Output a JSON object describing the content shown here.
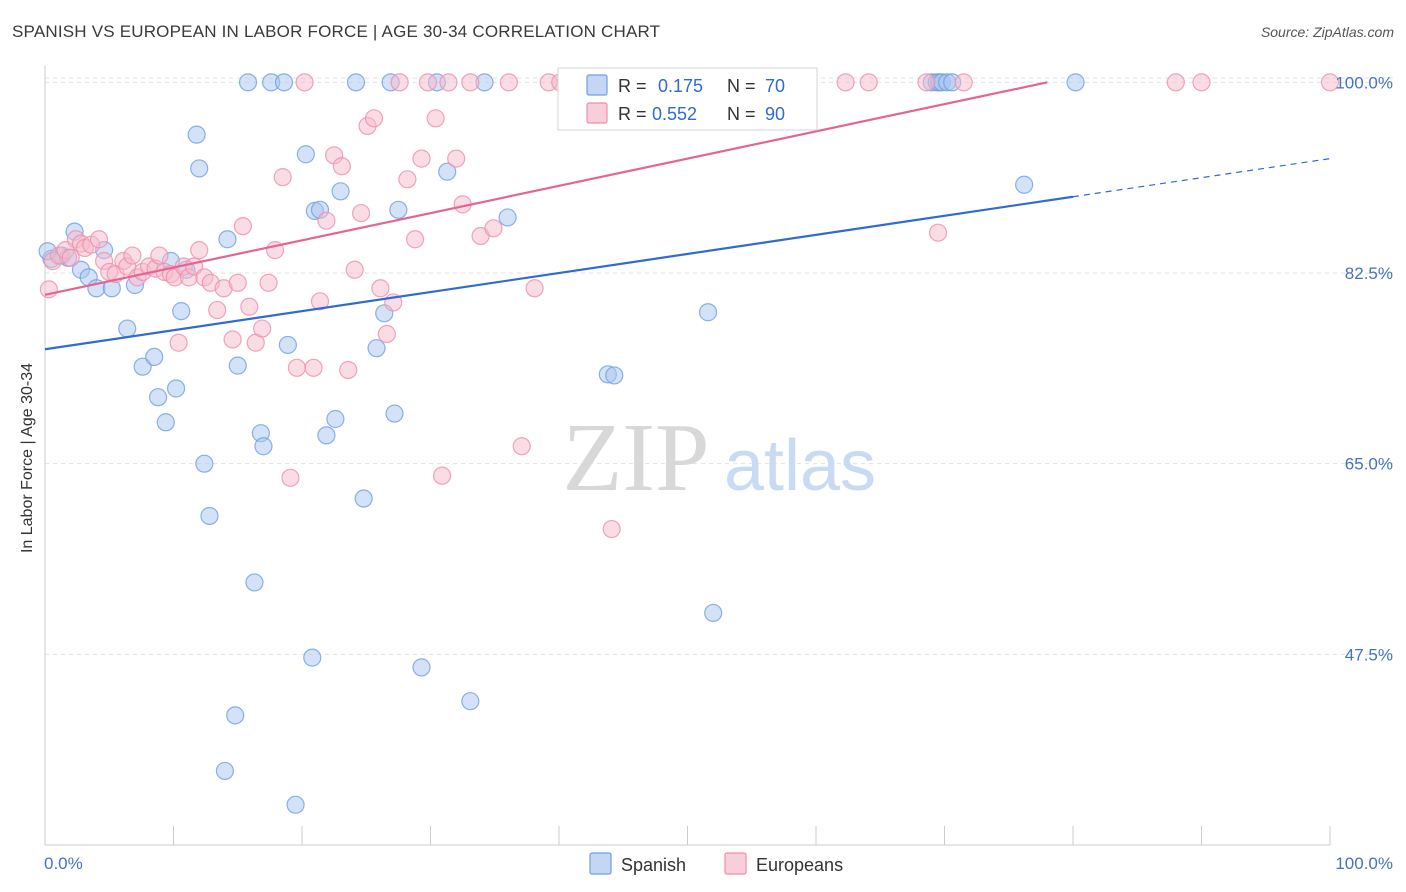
{
  "header": {
    "title": "SPANISH VS EUROPEAN IN LABOR FORCE | AGE 30-34 CORRELATION CHART",
    "source": "Source: ZipAtlas.com"
  },
  "colors": {
    "spanish_fill": "#a9c6f0",
    "spanish_stroke": "#6f9fe0",
    "spanish_line": "#2f6bd0",
    "europeans_fill": "#f6b9cc",
    "europeans_stroke": "#ee8fad",
    "europeans_line": "#e4668f",
    "grid": "#e2e2e2",
    "tick_text": "#4472c4"
  },
  "chart_data": {
    "type": "scatter",
    "title": "SPANISH VS EUROPEAN IN LABOR FORCE | AGE 30-34 CORRELATION CHART",
    "xlabel": "",
    "ylabel": "In Labor Force | Age 30-34",
    "xlim": [
      0,
      100
    ],
    "ylim": [
      30,
      101.5
    ],
    "x_tick_labels": [
      "0.0%",
      "100.0%"
    ],
    "y_ticks": [
      47.5,
      65.0,
      82.5,
      100.0
    ],
    "y_tick_labels": [
      "47.5%",
      "65.0%",
      "82.5%",
      "100.0%"
    ],
    "grid": true,
    "legend_position": "top-center",
    "watermark": {
      "zip": "ZIP",
      "atlas": "atlas"
    },
    "stats": [
      {
        "r_label": "R =",
        "r": "0.175",
        "n_label": "N =",
        "n": "70"
      },
      {
        "r_label": "R =",
        "r": "0.552",
        "n_label": "N =",
        "n": "90"
      }
    ],
    "series": [
      {
        "name": "Spanish",
        "trend": {
          "x": [
            0,
            80
          ],
          "y": [
            75.5,
            89.5
          ],
          "dashed_x": [
            80,
            100
          ],
          "dashed_y": [
            89.5,
            93.0
          ]
        },
        "points": [
          [
            0.5,
            83.8
          ],
          [
            1.3,
            84.1
          ],
          [
            1.8,
            83.9
          ],
          [
            2.3,
            86.3
          ],
          [
            2.8,
            82.8
          ],
          [
            3.4,
            82.1
          ],
          [
            4.0,
            81.1
          ],
          [
            4.6,
            84.6
          ],
          [
            5.2,
            81.1
          ],
          [
            6.4,
            77.4
          ],
          [
            7.0,
            81.4
          ],
          [
            7.6,
            73.9
          ],
          [
            8.5,
            74.8
          ],
          [
            8.8,
            71.1
          ],
          [
            9.4,
            68.8
          ],
          [
            9.8,
            83.6
          ],
          [
            10.2,
            71.9
          ],
          [
            10.6,
            79.0
          ],
          [
            11.0,
            82.8
          ],
          [
            11.8,
            95.2
          ],
          [
            12.0,
            92.1
          ],
          [
            12.4,
            65.0
          ],
          [
            12.8,
            60.2
          ],
          [
            14.0,
            36.8
          ],
          [
            14.2,
            85.6
          ],
          [
            14.8,
            41.9
          ],
          [
            15.0,
            74.0
          ],
          [
            15.8,
            100.0
          ],
          [
            16.3,
            54.1
          ],
          [
            16.8,
            67.8
          ],
          [
            17.0,
            66.6
          ],
          [
            17.6,
            100.0
          ],
          [
            18.6,
            100.0
          ],
          [
            18.9,
            75.9
          ],
          [
            19.5,
            33.7
          ],
          [
            20.3,
            93.4
          ],
          [
            20.8,
            47.2
          ],
          [
            21.0,
            88.2
          ],
          [
            21.4,
            88.3
          ],
          [
            21.9,
            67.6
          ],
          [
            22.6,
            69.1
          ],
          [
            23.0,
            90.0
          ],
          [
            24.2,
            100.0
          ],
          [
            24.8,
            61.8
          ],
          [
            25.8,
            75.6
          ],
          [
            26.4,
            78.8
          ],
          [
            26.9,
            100.0
          ],
          [
            27.2,
            69.6
          ],
          [
            27.5,
            88.3
          ],
          [
            29.3,
            46.3
          ],
          [
            30.5,
            100.0
          ],
          [
            31.3,
            91.8
          ],
          [
            33.1,
            43.2
          ],
          [
            34.2,
            100.0
          ],
          [
            36.0,
            87.6
          ],
          [
            41.7,
            100.0
          ],
          [
            43.6,
            100.0
          ],
          [
            43.8,
            73.2
          ],
          [
            44.3,
            73.1
          ],
          [
            51.6,
            78.9
          ],
          [
            52.0,
            51.3
          ],
          [
            69.0,
            100.0
          ],
          [
            69.4,
            100.0
          ],
          [
            69.6,
            100.0
          ],
          [
            69.8,
            100.0
          ],
          [
            70.2,
            100.0
          ],
          [
            70.6,
            100.0
          ],
          [
            76.2,
            90.6
          ],
          [
            80.2,
            100.0
          ],
          [
            0.2,
            84.5
          ]
        ]
      },
      {
        "name": "Europeans",
        "trend": {
          "x": [
            0,
            78
          ],
          "y": [
            80.5,
            100.0
          ]
        },
        "points": [
          [
            0.3,
            81.0
          ],
          [
            0.6,
            83.6
          ],
          [
            1.1,
            84.1
          ],
          [
            1.6,
            84.6
          ],
          [
            2.0,
            83.9
          ],
          [
            2.4,
            85.6
          ],
          [
            2.8,
            85.2
          ],
          [
            3.1,
            84.8
          ],
          [
            3.6,
            85.1
          ],
          [
            4.2,
            85.6
          ],
          [
            4.6,
            83.6
          ],
          [
            5.0,
            82.6
          ],
          [
            5.5,
            82.4
          ],
          [
            6.1,
            83.6
          ],
          [
            6.4,
            83.1
          ],
          [
            6.8,
            84.1
          ],
          [
            7.2,
            82.1
          ],
          [
            7.6,
            82.6
          ],
          [
            8.1,
            83.1
          ],
          [
            8.6,
            82.9
          ],
          [
            8.9,
            84.1
          ],
          [
            9.3,
            82.6
          ],
          [
            9.8,
            82.4
          ],
          [
            10.1,
            82.1
          ],
          [
            10.4,
            76.1
          ],
          [
            10.8,
            83.1
          ],
          [
            11.2,
            82.1
          ],
          [
            11.6,
            83.1
          ],
          [
            12.0,
            84.6
          ],
          [
            12.4,
            82.1
          ],
          [
            12.9,
            81.6
          ],
          [
            13.4,
            79.1
          ],
          [
            13.9,
            81.1
          ],
          [
            14.6,
            76.4
          ],
          [
            15.0,
            81.6
          ],
          [
            15.4,
            86.8
          ],
          [
            15.9,
            79.4
          ],
          [
            16.4,
            76.1
          ],
          [
            16.9,
            77.4
          ],
          [
            17.4,
            81.6
          ],
          [
            17.9,
            84.6
          ],
          [
            18.5,
            91.3
          ],
          [
            19.1,
            63.7
          ],
          [
            19.6,
            73.8
          ],
          [
            20.2,
            100.0
          ],
          [
            20.9,
            73.8
          ],
          [
            21.4,
            79.9
          ],
          [
            21.9,
            87.3
          ],
          [
            22.5,
            93.3
          ],
          [
            23.1,
            92.3
          ],
          [
            23.6,
            73.6
          ],
          [
            24.1,
            82.8
          ],
          [
            24.6,
            88.0
          ],
          [
            25.1,
            96.0
          ],
          [
            25.6,
            96.7
          ],
          [
            26.1,
            81.1
          ],
          [
            26.6,
            76.9
          ],
          [
            27.1,
            79.8
          ],
          [
            27.6,
            100.0
          ],
          [
            28.2,
            91.1
          ],
          [
            28.8,
            85.6
          ],
          [
            29.3,
            93.0
          ],
          [
            29.8,
            100.0
          ],
          [
            30.4,
            96.7
          ],
          [
            30.9,
            63.9
          ],
          [
            31.4,
            100.0
          ],
          [
            32.0,
            93.0
          ],
          [
            32.5,
            88.8
          ],
          [
            33.1,
            100.0
          ],
          [
            33.9,
            85.9
          ],
          [
            34.9,
            86.6
          ],
          [
            36.1,
            100.0
          ],
          [
            37.1,
            66.6
          ],
          [
            38.1,
            81.1
          ],
          [
            39.2,
            100.0
          ],
          [
            40.1,
            100.0
          ],
          [
            44.1,
            59.0
          ],
          [
            49.9,
            100.0
          ],
          [
            51.8,
            100.0
          ],
          [
            54.1,
            100.0
          ],
          [
            55.1,
            100.0
          ],
          [
            57.9,
            100.0
          ],
          [
            62.3,
            100.0
          ],
          [
            64.1,
            100.0
          ],
          [
            68.6,
            100.0
          ],
          [
            69.5,
            86.2
          ],
          [
            71.5,
            100.0
          ],
          [
            88.0,
            100.0
          ],
          [
            90.0,
            100.0
          ],
          [
            100.0,
            100.0
          ]
        ]
      }
    ]
  }
}
